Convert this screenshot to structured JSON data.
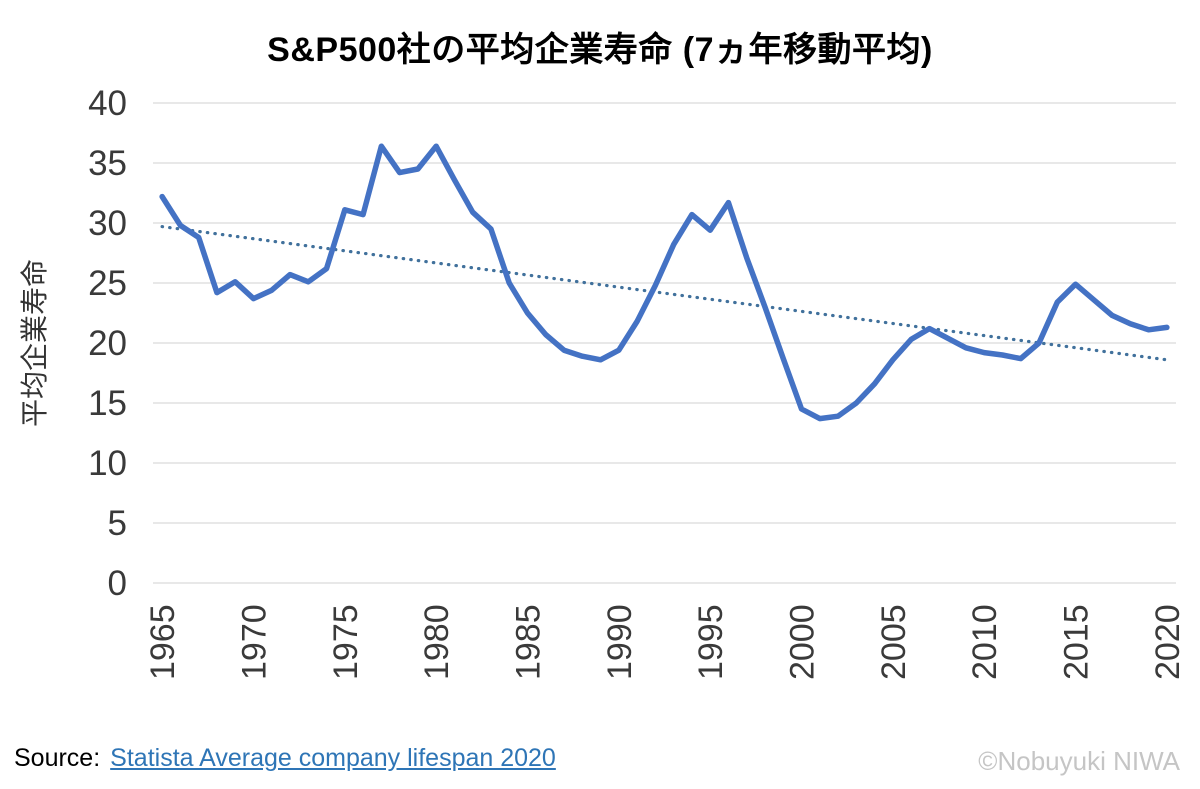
{
  "title": "S&P500社の平均企業寿命 (7ヵ年移動平均)",
  "source": {
    "prefix": "Source:",
    "link_text": "Statista Average company lifespan 2020"
  },
  "watermark": "©Nobuyuki NIWA",
  "colors": {
    "series": "#4472C4",
    "trend": "#41719C",
    "grid": "#D9D9D9",
    "axis_text": "#3A3A3A",
    "axis_title_text": "#333333",
    "title_text": "#000000",
    "link": "#2E75B6",
    "watermark": "#C5C5C5",
    "background": "#FFFFFF"
  },
  "chart_data": {
    "type": "line",
    "title": "S&P500社の平均企業寿命 (7ヵ年移動平均)",
    "xlabel": "",
    "ylabel": "平均企業寿命",
    "ylim": [
      0,
      40
    ],
    "ytick_step": 5,
    "ytick_labels": [
      "0",
      "5",
      "10",
      "15",
      "20",
      "25",
      "30",
      "35",
      "40"
    ],
    "grid": true,
    "legend": "none",
    "xtick_labels": [
      "1965",
      "1970",
      "1975",
      "1980",
      "1985",
      "1990",
      "1995",
      "2000",
      "2005",
      "2010",
      "2015",
      "2020"
    ],
    "series": [
      {
        "name": "平均企業寿命 (7ヵ年移動平均)",
        "color": "#4472C4",
        "years": [
          1965,
          1966,
          1967,
          1968,
          1969,
          1970,
          1971,
          1972,
          1973,
          1974,
          1975,
          1976,
          1977,
          1978,
          1979,
          1980,
          1981,
          1982,
          1983,
          1984,
          1985,
          1986,
          1987,
          1988,
          1989,
          1990,
          1991,
          1992,
          1993,
          1994,
          1995,
          1996,
          1997,
          1998,
          1999,
          2000,
          2001,
          2002,
          2003,
          2004,
          2005,
          2006,
          2007,
          2008,
          2009,
          2010,
          2011,
          2012,
          2013,
          2014,
          2015,
          2016,
          2017,
          2018,
          2019,
          2020
        ],
        "values": [
          32.2,
          29.8,
          28.8,
          24.2,
          25.1,
          23.7,
          24.4,
          25.7,
          25.1,
          26.2,
          31.1,
          30.7,
          36.4,
          34.2,
          34.5,
          36.4,
          33.6,
          30.9,
          29.5,
          25.0,
          22.5,
          20.7,
          19.4,
          18.9,
          18.6,
          19.4,
          21.8,
          24.8,
          28.2,
          30.7,
          29.4,
          31.7,
          27.1,
          23.0,
          18.7,
          14.5,
          13.7,
          13.9,
          15.0,
          16.6,
          18.6,
          20.3,
          21.2,
          20.4,
          19.6,
          19.2,
          19.0,
          18.7,
          20.0,
          23.4,
          24.9,
          23.6,
          22.3,
          21.6,
          21.1,
          21.3
        ]
      }
    ],
    "trendline": {
      "type": "linear",
      "style": "dotted",
      "color": "#41719C",
      "start_value": 29.7,
      "end_value": 18.6
    }
  }
}
